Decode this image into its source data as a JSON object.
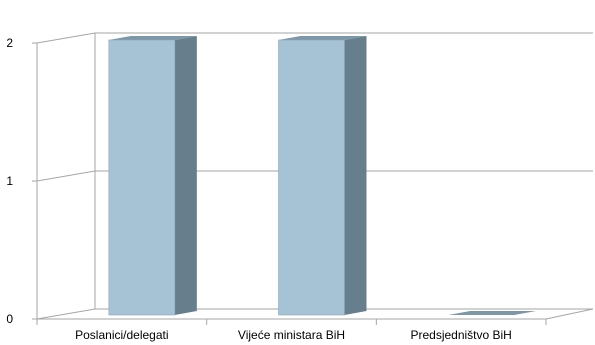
{
  "chart_data": {
    "type": "bar",
    "style": "3d-column",
    "categories": [
      "Poslanici/delegati",
      "Vijeće ministara BiH",
      "Predsjedništvo BiH"
    ],
    "values": [
      2,
      2,
      0
    ],
    "ylim": [
      0,
      2
    ],
    "yticks": [
      "0",
      "1",
      "2"
    ],
    "grid": true,
    "legend": "none",
    "colors": {
      "bar_front": "#a6c3d5",
      "bar_side": "#677f8c",
      "bar_top": "#7d97a6",
      "bar_edge": "#8aa7b8",
      "gridline": "#a6a6a6",
      "axis": "#a6a6a6"
    }
  }
}
